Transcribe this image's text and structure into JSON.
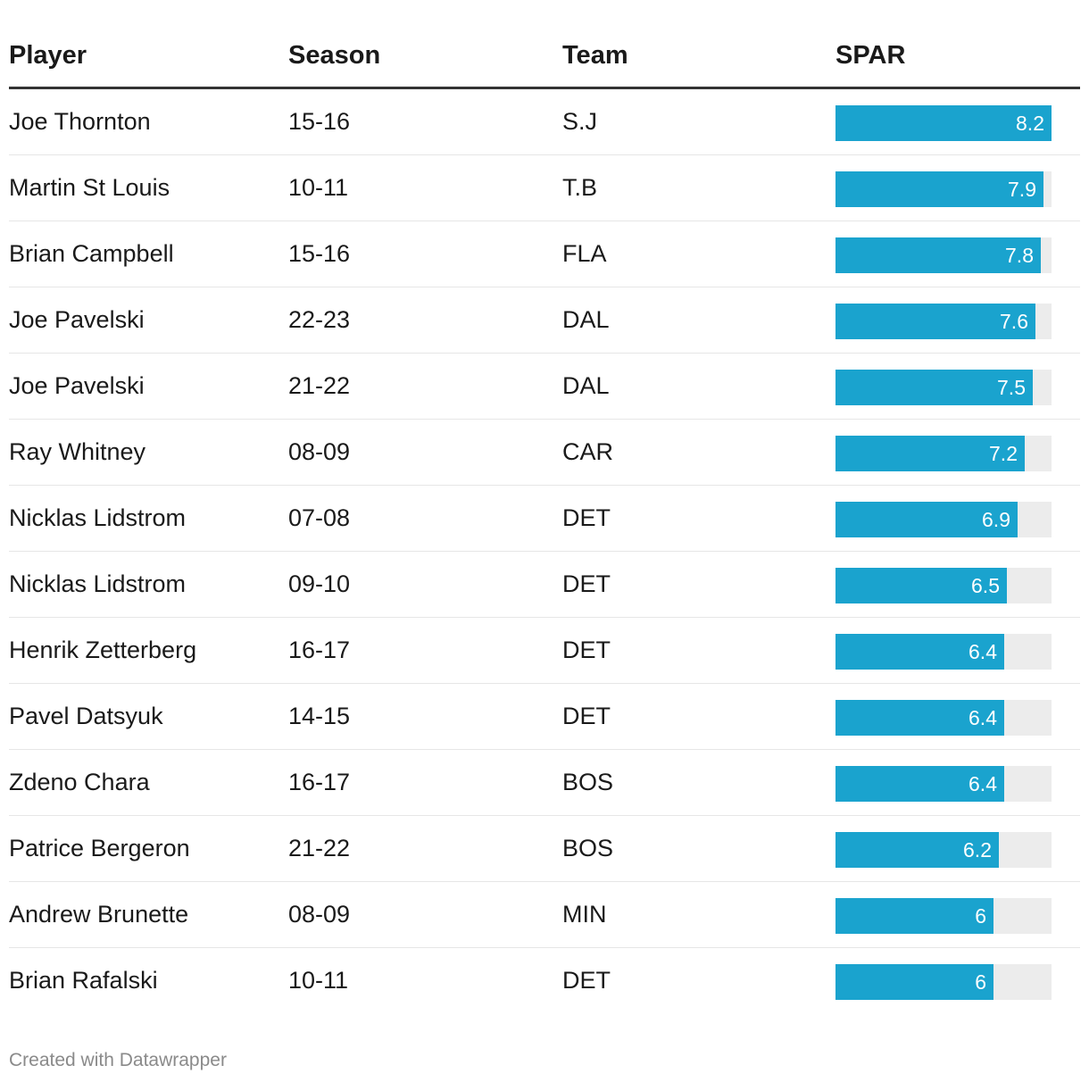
{
  "chart_data": {
    "type": "table",
    "columns": [
      "Player",
      "Season",
      "Team",
      "SPAR"
    ],
    "xlim": [
      0,
      8.2
    ],
    "bar_color": "#1aa3ce",
    "track_color": "#ececec",
    "rows": [
      {
        "player": "Joe Thornton",
        "season": "15-16",
        "team": "S.J",
        "spar": 8.2,
        "spar_label": "8.2"
      },
      {
        "player": "Martin St Louis",
        "season": "10-11",
        "team": "T.B",
        "spar": 7.9,
        "spar_label": "7.9"
      },
      {
        "player": "Brian Campbell",
        "season": "15-16",
        "team": "FLA",
        "spar": 7.8,
        "spar_label": "7.8"
      },
      {
        "player": "Joe Pavelski",
        "season": "22-23",
        "team": "DAL",
        "spar": 7.6,
        "spar_label": "7.6"
      },
      {
        "player": "Joe Pavelski",
        "season": "21-22",
        "team": "DAL",
        "spar": 7.5,
        "spar_label": "7.5"
      },
      {
        "player": "Ray Whitney",
        "season": "08-09",
        "team": "CAR",
        "spar": 7.2,
        "spar_label": "7.2"
      },
      {
        "player": "Nicklas Lidstrom",
        "season": "07-08",
        "team": "DET",
        "spar": 6.9,
        "spar_label": "6.9"
      },
      {
        "player": "Nicklas Lidstrom",
        "season": "09-10",
        "team": "DET",
        "spar": 6.5,
        "spar_label": "6.5"
      },
      {
        "player": "Henrik Zetterberg",
        "season": "16-17",
        "team": "DET",
        "spar": 6.4,
        "spar_label": "6.4"
      },
      {
        "player": "Pavel Datsyuk",
        "season": "14-15",
        "team": "DET",
        "spar": 6.4,
        "spar_label": "6.4"
      },
      {
        "player": "Zdeno Chara",
        "season": "16-17",
        "team": "BOS",
        "spar": 6.4,
        "spar_label": "6.4"
      },
      {
        "player": "Patrice Bergeron",
        "season": "21-22",
        "team": "BOS",
        "spar": 6.2,
        "spar_label": "6.2"
      },
      {
        "player": "Andrew Brunette",
        "season": "08-09",
        "team": "MIN",
        "spar": 6,
        "spar_label": "6"
      },
      {
        "player": "Brian Rafalski",
        "season": "10-11",
        "team": "DET",
        "spar": 6,
        "spar_label": "6"
      }
    ]
  },
  "footer": {
    "credit": "Created with Datawrapper"
  }
}
